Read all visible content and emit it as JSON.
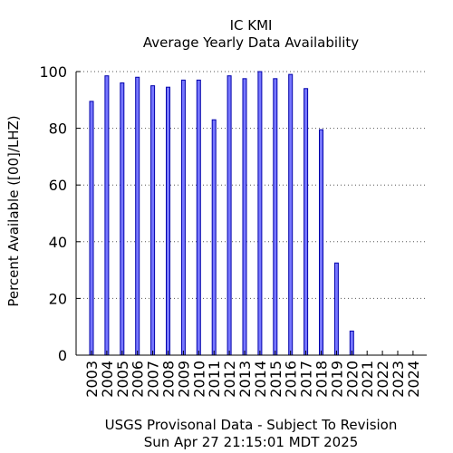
{
  "chart_data": {
    "type": "bar",
    "title": "IC KMI",
    "subtitle": "Average Yearly Data Availability",
    "ylabel": "Percent Available ([00]/LHZ)",
    "xlabel": "USGS Provisonal Data - Subject To Revision",
    "timestamp": "Sun Apr 27 21:15:01 MDT 2025",
    "categories": [
      "2003",
      "2004",
      "2005",
      "2006",
      "2007",
      "2008",
      "2009",
      "2010",
      "2011",
      "2012",
      "2013",
      "2014",
      "2015",
      "2016",
      "2017",
      "2018",
      "2019",
      "2020",
      "2021",
      "2022",
      "2023",
      "2024"
    ],
    "values": [
      89.5,
      98.5,
      96,
      98,
      95,
      94.5,
      97,
      97,
      83,
      98.5,
      97.5,
      100,
      97.5,
      99,
      94,
      79.5,
      32.5,
      8.5,
      0,
      0,
      0,
      0
    ],
    "ylim": [
      0,
      100
    ],
    "yticks": [
      0,
      20,
      40,
      60,
      80,
      100
    ],
    "grid": true,
    "bar_color": "#7777ff",
    "bar_edge_color": "#0000aa"
  }
}
